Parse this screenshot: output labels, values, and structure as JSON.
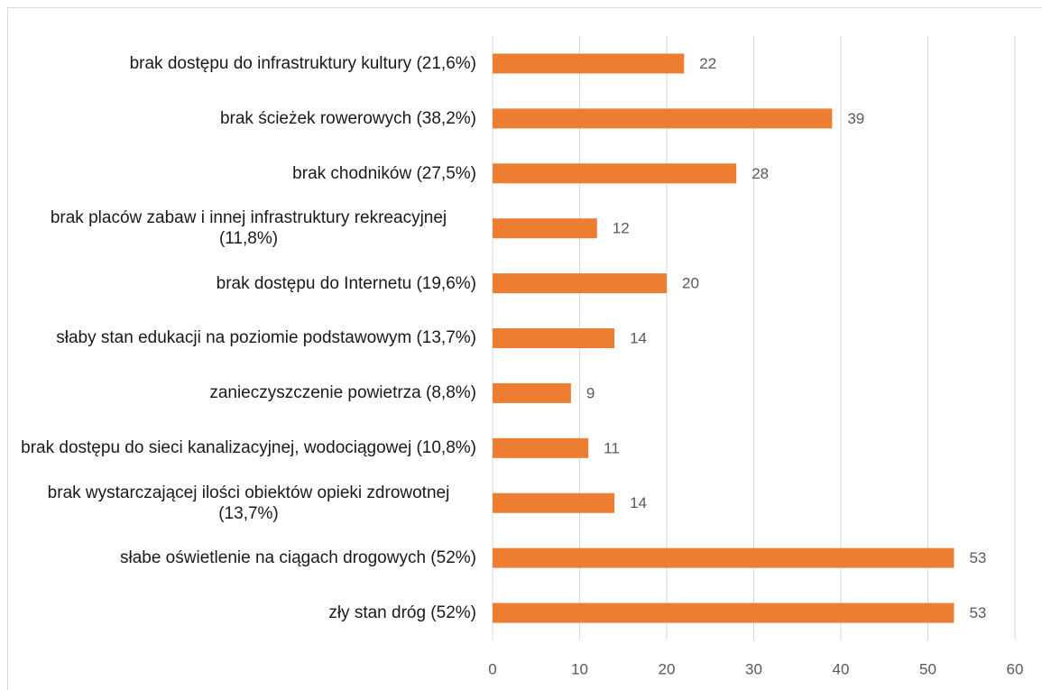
{
  "chart_data": {
    "type": "bar",
    "orientation": "horizontal",
    "categories": [
      "brak dostępu do infrastruktury kultury (21,6%)",
      "brak ścieżek rowerowych (38,2%)",
      "brak chodników (27,5%)",
      "brak placów zabaw i innej infrastruktury rekreacyjnej (11,8%)",
      "brak dostępu do Internetu (19,6%)",
      "słaby stan edukacji na poziomie podstawowym (13,7%)",
      "zanieczyszczenie powietrza (8,8%)",
      "brak dostępu do sieci kanalizacyjnej, wodociągowej (10,8%)",
      "brak wystarczającej ilości obiektów opieki zdrowotnej (13,7%)",
      "słabe oświetlenie na ciągach drogowych (52%)",
      "zły stan dróg (52%)"
    ],
    "values": [
      22,
      39,
      28,
      12,
      20,
      14,
      9,
      11,
      14,
      53,
      53
    ],
    "color": "#ed7d31",
    "xlim": [
      0,
      60
    ],
    "xticks": [
      0,
      10,
      20,
      30,
      40,
      50,
      60
    ],
    "grid": true
  }
}
